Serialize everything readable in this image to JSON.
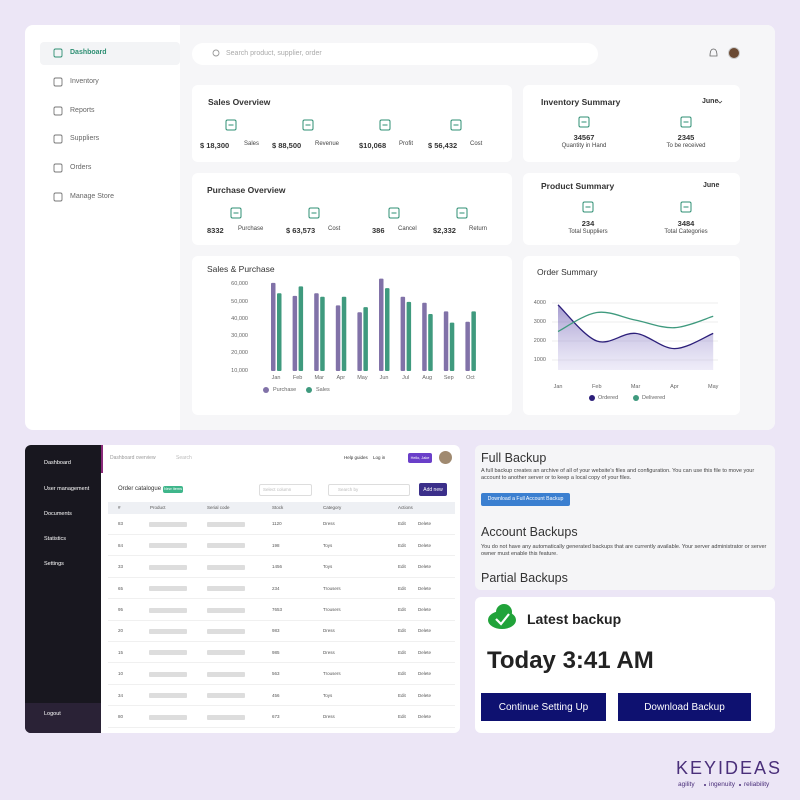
{
  "sidebar": {
    "items": [
      "Dashboard",
      "Inventory",
      "Reports",
      "Suppliers",
      "Orders",
      "Manage Store"
    ]
  },
  "search": "Search product, supplier, order",
  "sales_overview": {
    "title": "Sales Overview",
    "items": [
      {
        "value": "$ 18,300",
        "label": "Sales"
      },
      {
        "value": "$ 88,500",
        "label": "Revenue"
      },
      {
        "value": "$10,068",
        "label": "Profit"
      },
      {
        "value": "$ 56,432",
        "label": "Cost"
      }
    ]
  },
  "inventory_summary": {
    "title": "Inventory Summary",
    "period": "June",
    "items": [
      {
        "value": "34567",
        "label": "Quantity in Hand"
      },
      {
        "value": "2345",
        "label": "To be received"
      }
    ]
  },
  "purchase_overview": {
    "title": "Purchase Overview",
    "items": [
      {
        "value": "8332",
        "label": "Purchase"
      },
      {
        "value": "$ 63,573",
        "label": "Cost"
      },
      {
        "value": "386",
        "label": "Cancel"
      },
      {
        "value": "$2,332",
        "label": "Return"
      }
    ]
  },
  "product_summary": {
    "title": "Product Summary",
    "period": "June",
    "items": [
      {
        "value": "234",
        "label": "Total Suppliers"
      },
      {
        "value": "3484",
        "label": "Total Categories"
      }
    ]
  },
  "sales_purchase": {
    "type": "bar",
    "title": "Sales & Purchase",
    "categories": [
      "Jan",
      "Feb",
      "Mar",
      "Apr",
      "May",
      "Jun",
      "Jul",
      "Aug",
      "Sep",
      "Oct"
    ],
    "series": [
      {
        "name": "Purchase",
        "color": "#8172a8",
        "values": [
          61000,
          53500,
          55000,
          48000,
          44000,
          63500,
          53000,
          49500,
          44500,
          38500
        ]
      },
      {
        "name": "Sales",
        "color": "#3f9a7e",
        "values": [
          55000,
          59000,
          53000,
          53000,
          47000,
          58000,
          50000,
          43000,
          38000,
          44500
        ]
      }
    ],
    "ylim": [
      10000,
      65000
    ],
    "yticks": [
      {
        "value": 10000,
        "label": "10,000"
      },
      {
        "value": 20000,
        "label": "20,000"
      },
      {
        "value": 30000,
        "label": "30,000"
      },
      {
        "value": 40000,
        "label": "40,000"
      },
      {
        "value": 50000,
        "label": "50,000"
      },
      {
        "value": 60000,
        "label": "60,000"
      }
    ],
    "grid": false
  },
  "order_summary": {
    "type": "line",
    "title": "Order Summary",
    "categories": [
      "Jan",
      "Feb",
      "Mar",
      "Apr",
      "May"
    ],
    "series": [
      {
        "name": "Ordered",
        "color": "#2c1f7a",
        "values": [
          3900,
          2000,
          2400,
          1600,
          2400
        ]
      },
      {
        "name": "Delivered",
        "color": "#3f9a7e",
        "values": [
          2500,
          3500,
          3100,
          2700,
          3300
        ]
      }
    ],
    "ylim": [
      0,
      4000
    ],
    "yticks": [
      1000,
      2000,
      3000,
      4000
    ],
    "grid": true
  },
  "admin": {
    "sidebar": [
      "Dashboard",
      "User management",
      "Documents",
      "Statistics",
      "Settings"
    ],
    "logout": "Logout",
    "breadcrumb": "Dashboard overview",
    "search": "Search",
    "links": [
      "Help guides",
      "Log in"
    ],
    "user": "Hello, Jake",
    "card_title": "Order catalogue",
    "badge": "New Items",
    "select": "Select column",
    "filter": "Search by",
    "add": "Add new",
    "columns": [
      "#",
      "Product",
      "Serial code",
      "Stock",
      "Category",
      "Actions"
    ],
    "rows": [
      [
        "83",
        "1120",
        "Dress",
        "Edit",
        "Delete"
      ],
      [
        "84",
        "198",
        "Toys",
        "Edit",
        "Delete"
      ],
      [
        "33",
        "1456",
        "Toys",
        "Edit",
        "Delete"
      ],
      [
        "65",
        "234",
        "Trousers",
        "Edit",
        "Delete"
      ],
      [
        "95",
        "7653",
        "Trousers",
        "Edit",
        "Delete"
      ],
      [
        "20",
        "983",
        "Dress",
        "Edit",
        "Delete"
      ],
      [
        "15",
        "985",
        "Dress",
        "Edit",
        "Delete"
      ],
      [
        "10",
        "563",
        "Trousers",
        "Edit",
        "Delete"
      ],
      [
        "34",
        "456",
        "Toys",
        "Edit",
        "Delete"
      ],
      [
        "80",
        "673",
        "Dress",
        "Edit",
        "Delete"
      ]
    ]
  },
  "backup": {
    "full": {
      "title": "Full Backup",
      "text": "A full backup creates an archive of all of your website's files and configuration. You can use this file to move your account to another server or to keep a local copy of your files.",
      "button": "Download a Full Account Backup"
    },
    "account": {
      "title": "Account Backups",
      "text": "You do not have any automatically generated backups that are currently available. Your server administrator or server owner must enable this feature."
    },
    "partial": {
      "title": "Partial Backups"
    }
  },
  "latest": {
    "title": "Latest backup",
    "time": "Today 3:41 AM",
    "buttons": [
      "Continue Setting Up",
      "Download Backup"
    ]
  },
  "brand": {
    "name": "KEYIDEAS",
    "tagline": [
      "agility",
      "ingenuity",
      "reliability"
    ]
  }
}
